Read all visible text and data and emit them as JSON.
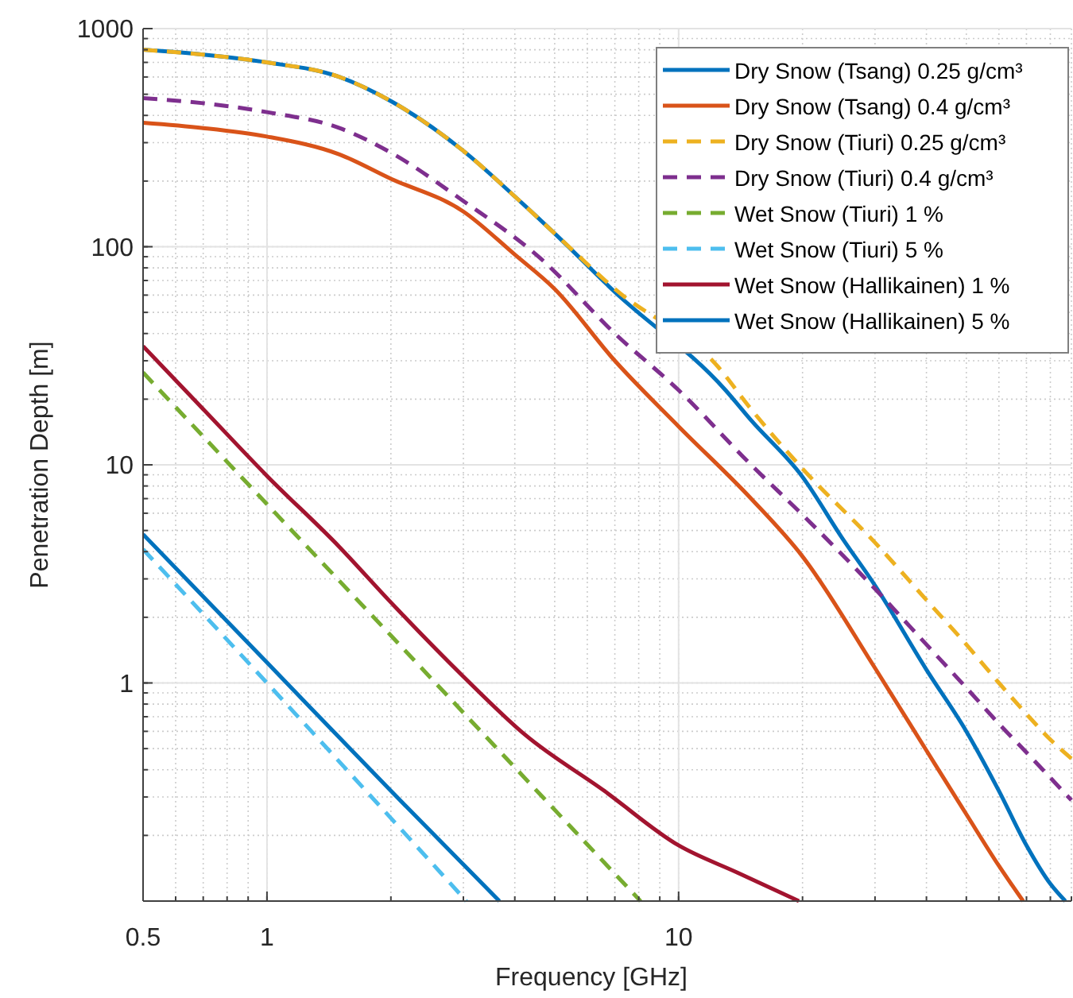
{
  "chart_data": {
    "type": "line",
    "xlabel": "Frequency [GHz]",
    "ylabel": "Penetration Depth [m]",
    "log": "xy",
    "xlim": [
      0.5,
      90
    ],
    "ylim": [
      0.1,
      1000
    ],
    "xticks": [
      0.5,
      1,
      10
    ],
    "yticks": [
      1,
      10,
      100,
      1000
    ],
    "grid": true,
    "legend": "top right",
    "series": [
      {
        "name": "Dry Snow (Tsang) 0.25 g/cm³",
        "color": "#0072bd",
        "line_style": "solid",
        "x": [
          0.5,
          0.7,
          1,
          1.5,
          2,
          3,
          4,
          5,
          7,
          13,
          15,
          20,
          25,
          30,
          40,
          50,
          60,
          70,
          80,
          87
        ],
        "values": [
          800,
          760,
          700,
          600,
          465,
          275,
          170,
          115,
          62,
          22,
          16,
          8.8,
          4.6,
          2.8,
          1.15,
          0.6,
          0.32,
          0.18,
          0.12,
          0.1
        ]
      },
      {
        "name": "Dry Snow (Tsang) 0.4 g/cm³",
        "color": "#d95319",
        "line_style": "solid",
        "x": [
          0.5,
          0.7,
          1,
          1.5,
          2,
          3,
          4,
          5,
          7,
          10,
          15,
          20,
          30,
          40,
          50,
          60,
          68.7
        ],
        "values": [
          370,
          350,
          320,
          265,
          205,
          145,
          92,
          64,
          30,
          15,
          7,
          3.8,
          1.17,
          0.49,
          0.25,
          0.145,
          0.1
        ]
      },
      {
        "name": "Dry Snow (Tiuri) 0.25 g/cm³",
        "color": "#edb120",
        "line_style": "dashed",
        "x": [
          0.5,
          0.7,
          1,
          1.5,
          2,
          3,
          4,
          5,
          7,
          12.5,
          15,
          20,
          30,
          40,
          50,
          60,
          70,
          80,
          90
        ],
        "values": [
          800,
          760,
          700,
          600,
          465,
          275,
          170,
          115,
          64,
          28,
          18,
          9.6,
          4.4,
          2.4,
          1.5,
          1,
          0.72,
          0.55,
          0.45
        ]
      },
      {
        "name": "Dry Snow (Tiuri) 0.4 g/cm³",
        "color": "#7e2f8e",
        "line_style": "dashed",
        "x": [
          0.5,
          0.7,
          1,
          1.5,
          2,
          3,
          4.6,
          7,
          10,
          15,
          20,
          30,
          40,
          50,
          60,
          70,
          90
        ],
        "values": [
          480,
          455,
          414,
          350,
          270,
          162,
          89,
          40,
          22,
          10,
          5.9,
          2.7,
          1.5,
          0.95,
          0.65,
          0.48,
          0.29
        ]
      },
      {
        "name": "Wet Snow (Tiuri) 1 %",
        "color": "#77ac30",
        "line_style": "dashed",
        "x": [
          0.5,
          1,
          2,
          4,
          8.08
        ],
        "values": [
          26.5,
          6.6,
          1.65,
          0.41,
          0.1
        ]
      },
      {
        "name": "Wet Snow (Tiuri) 5 %",
        "color": "#4dbeee",
        "line_style": "dashed",
        "x": [
          0.5,
          1,
          2,
          3.05
        ],
        "values": [
          4.1,
          1,
          0.24,
          0.1
        ]
      },
      {
        "name": "Wet Snow (Hallikainen) 1 %",
        "color": "#a2142f",
        "line_style": "solid",
        "x": [
          0.5,
          0.7,
          1,
          1.5,
          2,
          3,
          4.23,
          6.6,
          10,
          13.9,
          19.6
        ],
        "values": [
          35,
          18,
          8.9,
          4.2,
          2.34,
          1.07,
          0.58,
          0.32,
          0.18,
          0.135,
          0.1
        ]
      },
      {
        "name": "Wet Snow (Hallikainen) 5 %",
        "color": "#0072bd",
        "line_style": "solid",
        "x": [
          0.5,
          1,
          2,
          3.67
        ],
        "values": [
          4.8,
          1.24,
          0.32,
          0.1
        ]
      }
    ]
  }
}
